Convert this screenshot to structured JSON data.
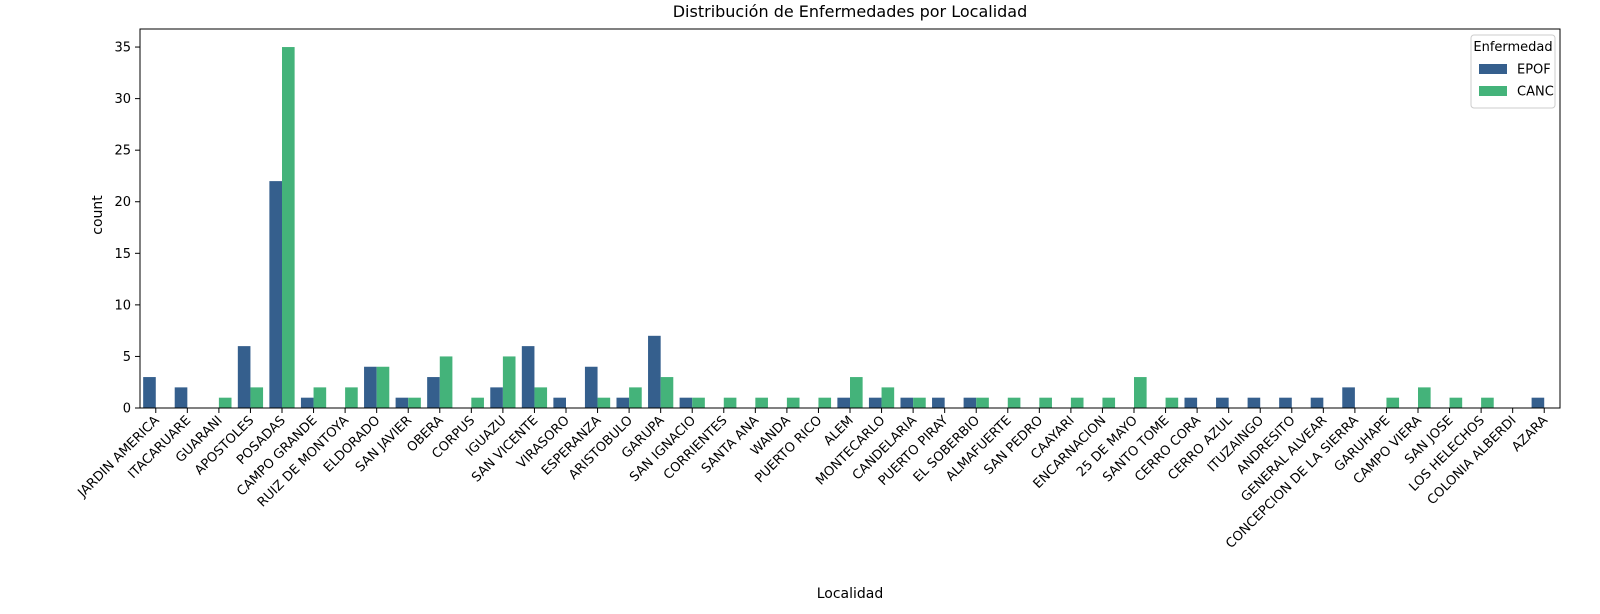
{
  "chart_data": {
    "type": "bar",
    "title": "Distribución de Enfermedades por Localidad",
    "xlabel": "Localidad",
    "ylabel": "count",
    "ylim": [
      0,
      36.75
    ],
    "yticks": [
      0,
      5,
      10,
      15,
      20,
      25,
      30,
      35
    ],
    "grid": false,
    "legend": {
      "title": "Enfermedad",
      "placement": "top-right"
    },
    "categories": [
      "JARDIN AMERICA",
      "ITACARUARE",
      "GUARANI",
      "APOSTOLES",
      "POSADAS",
      "CAMPO GRANDE",
      "RUIZ DE MONTOYA",
      "ELDORADO",
      "SAN JAVIER",
      "OBERA",
      "CORPUS",
      "IGUAZU",
      "SAN VICENTE",
      "VIRASORO",
      "ESPERANZA",
      "ARISTOBULO",
      "GARUPA",
      "SAN IGNACIO",
      "CORRIENTES",
      "SANTA ANA",
      "WANDA",
      "PUERTO RICO",
      "ALEM",
      "MONTECARLO",
      "CANDELARIA",
      "PUERTO PIRAY",
      "EL SOBERBIO",
      "ALMAFUERTE",
      "SAN PEDRO",
      "CAAYARI",
      "ENCARNACION",
      "25 DE MAYO",
      "SANTO TOME",
      "CERRO CORA",
      "CERRO AZUL",
      "ITUZAINGO",
      "ANDRESITO",
      "GENERAL ALVEAR",
      "CONCEPCION DE LA SIERRA",
      "GARUHAPE",
      "CAMPO VIERA",
      "SAN JOSE",
      "LOS HELECHOS",
      "COLONIA ALBERDI",
      "AZARA"
    ],
    "series": [
      {
        "name": "EPOF",
        "color": "#355f8d",
        "values": [
          3,
          2,
          0,
          6,
          22,
          1,
          0,
          4,
          1,
          3,
          0,
          2,
          6,
          1,
          4,
          1,
          7,
          1,
          0,
          0,
          0,
          0,
          1,
          1,
          1,
          1,
          1,
          0,
          0,
          0,
          0,
          0,
          0,
          1,
          1,
          1,
          1,
          1,
          2,
          0,
          0,
          0,
          0,
          0,
          1
        ]
      },
      {
        "name": "CANC",
        "color": "#44b37a",
        "values": [
          0,
          0,
          1,
          2,
          35,
          2,
          2,
          4,
          1,
          5,
          1,
          5,
          2,
          0,
          1,
          2,
          3,
          1,
          1,
          1,
          1,
          1,
          3,
          2,
          1,
          0,
          1,
          1,
          1,
          1,
          1,
          3,
          1,
          0,
          0,
          0,
          0,
          0,
          0,
          1,
          2,
          1,
          1,
          0,
          0
        ]
      }
    ]
  }
}
